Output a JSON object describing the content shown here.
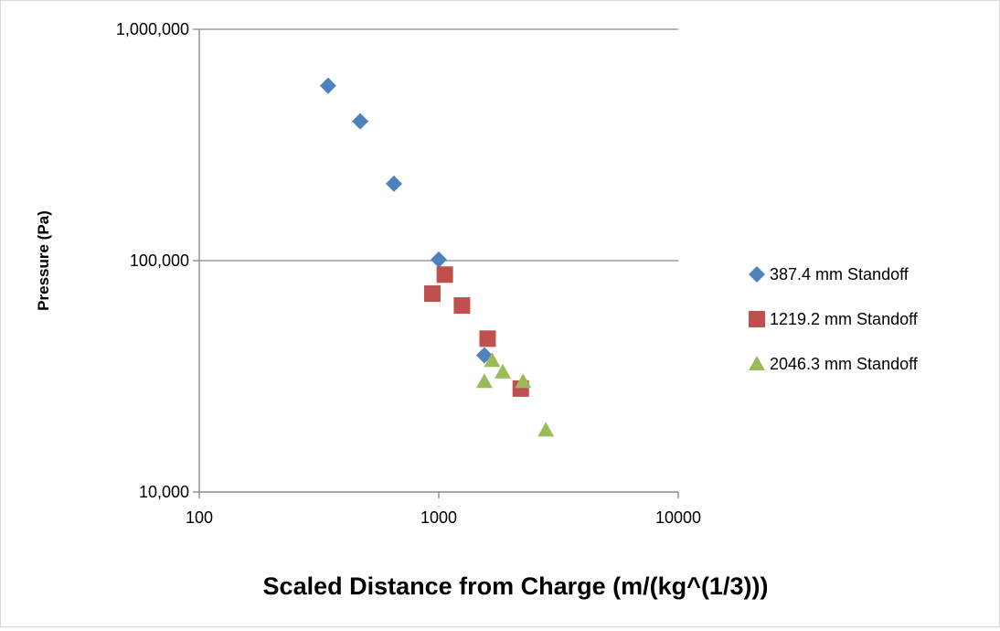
{
  "chart_data": {
    "type": "scatter",
    "title": "",
    "xlabel": "Scaled Distance from Charge (m/(kg^(1/3)))",
    "ylabel": "Pressure (Pa)",
    "x_scale": "log",
    "y_scale": "log",
    "xlim": [
      100,
      10000
    ],
    "ylim": [
      10000,
      1000000
    ],
    "x_ticks": [
      100,
      1000,
      10000
    ],
    "x_tick_labels": [
      "100",
      "1000",
      "10000"
    ],
    "y_ticks": [
      10000,
      100000,
      1000000
    ],
    "y_tick_labels": [
      "10,000",
      "100,000",
      "1,000,000"
    ],
    "grid": "horizontal major gridlines",
    "legend_position": "right",
    "series": [
      {
        "name": "387.4 mm Standoff",
        "marker": "diamond",
        "color": "#4f81bd",
        "points": [
          [
            345,
            570000
          ],
          [
            470,
            400000
          ],
          [
            650,
            215000
          ],
          [
            1000,
            101000
          ],
          [
            1550,
            39000
          ]
        ]
      },
      {
        "name": "1219.2 mm Standoff",
        "marker": "square",
        "color": "#c0504d",
        "points": [
          [
            940,
            72000
          ],
          [
            1060,
            87000
          ],
          [
            1250,
            64000
          ],
          [
            1600,
            46000
          ],
          [
            2200,
            28000
          ]
        ]
      },
      {
        "name": "2046.3 mm Standoff",
        "marker": "triangle",
        "color": "#9bbb59",
        "points": [
          [
            1550,
            30000
          ],
          [
            1670,
            37000
          ],
          [
            1850,
            33000
          ],
          [
            2250,
            30000
          ],
          [
            2800,
            18500
          ]
        ]
      }
    ]
  }
}
